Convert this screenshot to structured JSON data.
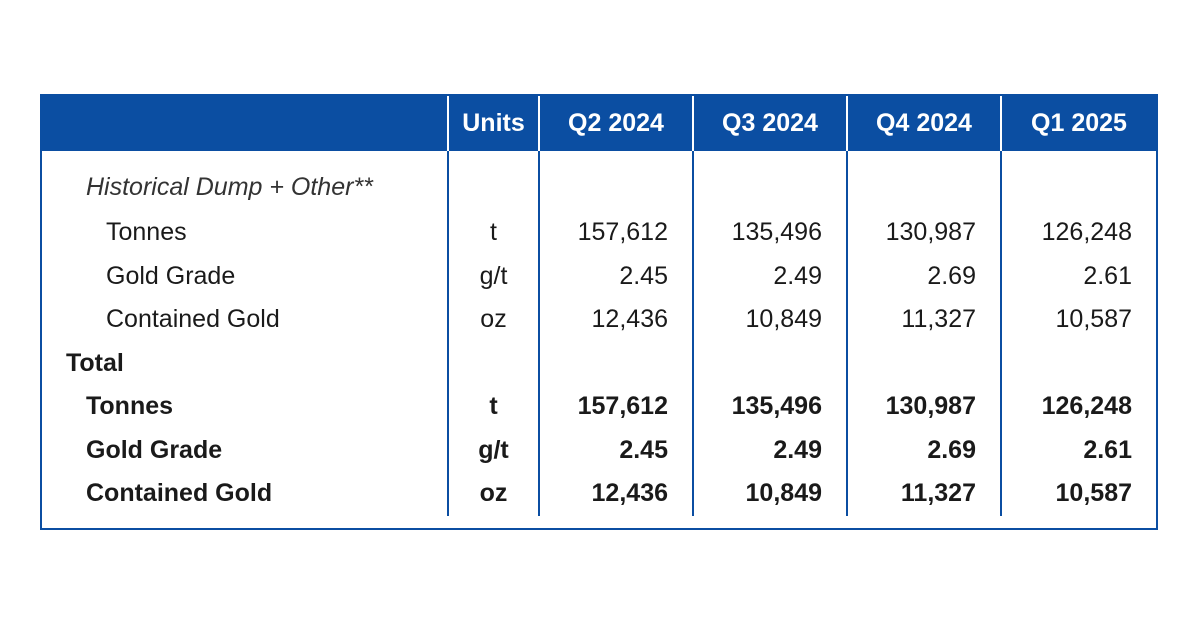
{
  "table": {
    "headers": {
      "label": "",
      "units": "Units",
      "periods": [
        "Q2 2024",
        "Q3 2024",
        "Q4 2024",
        "Q1 2025"
      ]
    },
    "groups": [
      {
        "title": "Historical Dump + Other**",
        "rows": [
          {
            "label": "Tonnes",
            "units": "t",
            "values": [
              "157,612",
              "135,496",
              "130,987",
              "126,248"
            ]
          },
          {
            "label": "Gold Grade",
            "units": "g/t",
            "values": [
              "2.45",
              "2.49",
              "2.69",
              "2.61"
            ]
          },
          {
            "label": "Contained Gold",
            "units": "oz",
            "values": [
              "12,436",
              "10,849",
              "11,327",
              "10,587"
            ]
          }
        ]
      },
      {
        "title": "Total",
        "rows": [
          {
            "label": "Tonnes",
            "units": "t",
            "values": [
              "157,612",
              "135,496",
              "130,987",
              "126,248"
            ]
          },
          {
            "label": "Gold Grade",
            "units": "g/t",
            "values": [
              "2.45",
              "2.49",
              "2.69",
              "2.61"
            ]
          },
          {
            "label": "Contained Gold",
            "units": "oz",
            "values": [
              "12,436",
              "10,849",
              "11,327",
              "10,587"
            ]
          }
        ]
      }
    ]
  },
  "colors": {
    "header_background": "#0b4ea2",
    "header_text": "#ffffff",
    "border": "#0b4ea2"
  }
}
